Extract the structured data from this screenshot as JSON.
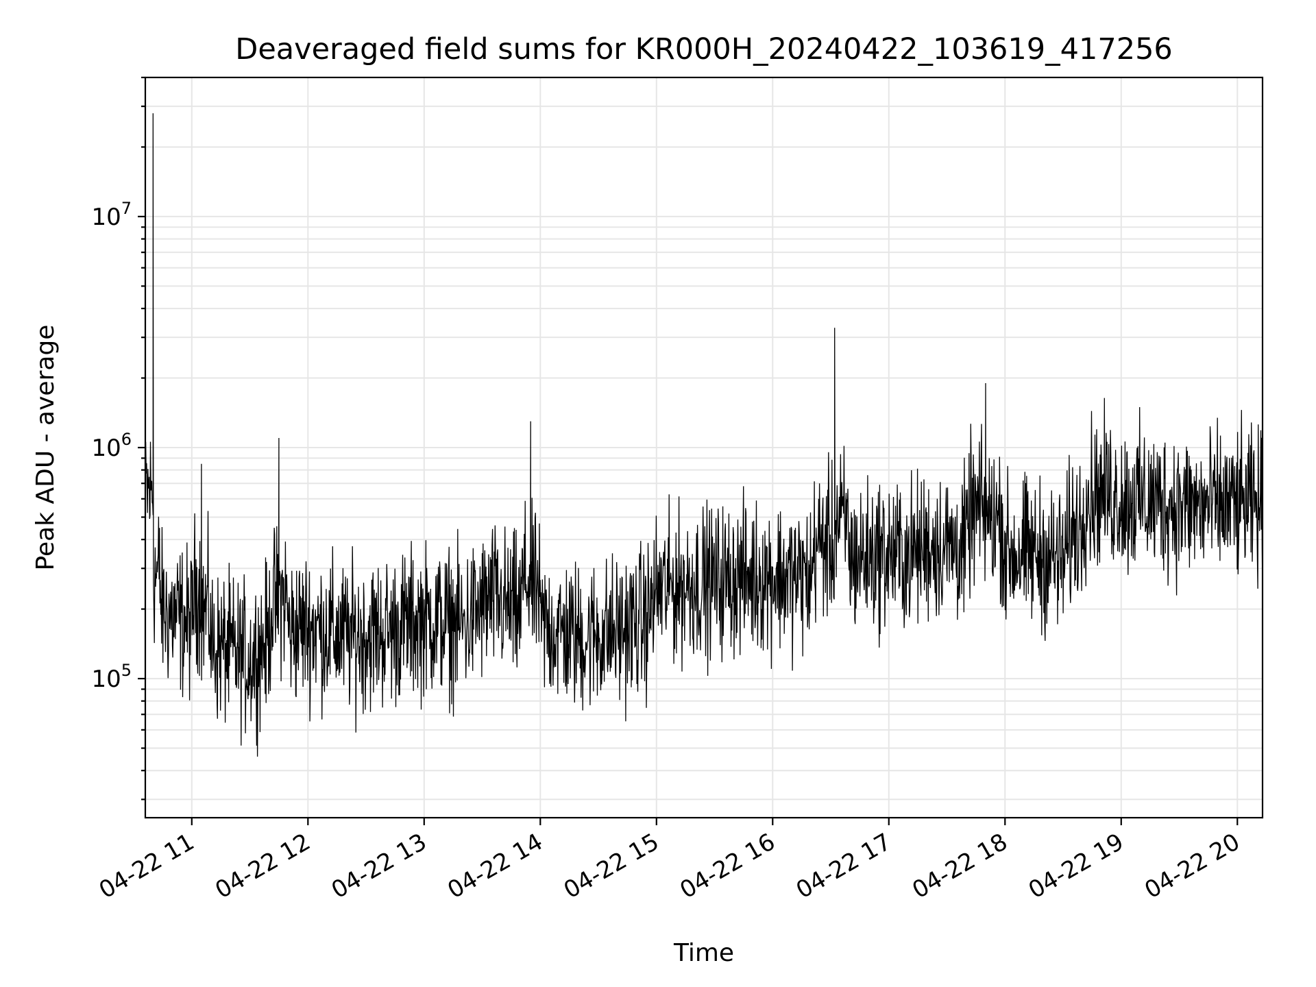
{
  "chart_data": {
    "type": "line",
    "title": "Deaveraged field sums for KR000H_20240422_103619_417256",
    "xlabel": "Time",
    "ylabel": "Peak ADU - average",
    "y_scale": "log",
    "ylim": [
      25000,
      40000000
    ],
    "xlim": [
      "2024-04-22 10:36",
      "2024-04-22 20:13"
    ],
    "x_ticks": [
      "04-22 11",
      "04-22 12",
      "04-22 13",
      "04-22 14",
      "04-22 15",
      "04-22 16",
      "04-22 17",
      "04-22 18",
      "04-22 19",
      "04-22 20"
    ],
    "y_ticks": [
      {
        "value": 100000,
        "base": "10",
        "exp": "5"
      },
      {
        "value": 1000000,
        "base": "10",
        "exp": "6"
      },
      {
        "value": 10000000,
        "base": "10",
        "exp": "7"
      }
    ],
    "grid": true,
    "line_color": "#000000",
    "series": [
      {
        "x": [
          "2024-04-22 10:36",
          "2024-04-22 10:40",
          "2024-04-22 10:44",
          "2024-04-22 11:00",
          "2024-04-22 11:05",
          "2024-04-22 11:10",
          "2024-04-22 11:20",
          "2024-04-22 11:30",
          "2024-04-22 11:40",
          "2024-04-22 11:45",
          "2024-04-22 11:50",
          "2024-04-22 12:00",
          "2024-04-22 12:20",
          "2024-04-22 12:40",
          "2024-04-22 13:00",
          "2024-04-22 13:20",
          "2024-04-22 13:35",
          "2024-04-22 13:50",
          "2024-04-22 13:55",
          "2024-04-22 14:00",
          "2024-04-22 14:20",
          "2024-04-22 14:40",
          "2024-04-22 14:55",
          "2024-04-22 15:00",
          "2024-04-22 15:20",
          "2024-04-22 15:40",
          "2024-04-22 16:00",
          "2024-04-22 16:20",
          "2024-04-22 16:32",
          "2024-04-22 16:40",
          "2024-04-22 17:00",
          "2024-04-22 17:10",
          "2024-04-22 17:20",
          "2024-04-22 17:40",
          "2024-04-22 17:50",
          "2024-04-22 18:00",
          "2024-04-22 18:20",
          "2024-04-22 18:30",
          "2024-04-22 18:40",
          "2024-04-22 18:50",
          "2024-04-22 19:00",
          "2024-04-22 19:20",
          "2024-04-22 19:40",
          "2024-04-22 20:00",
          "2024-04-22 20:13"
        ],
        "y": [
          450000,
          28000000,
          200000,
          170000,
          850000,
          140000,
          130000,
          120000,
          150000,
          1100000,
          160000,
          170000,
          150000,
          160000,
          180000,
          170000,
          220000,
          190000,
          1300000,
          170000,
          150000,
          160000,
          180000,
          240000,
          260000,
          270000,
          280000,
          270000,
          3300000,
          330000,
          350000,
          340000,
          380000,
          370000,
          1900000,
          350000,
          340000,
          320000,
          600000,
          650000,
          600000,
          580000,
          550000,
          560000,
          550000
        ]
      }
    ]
  }
}
